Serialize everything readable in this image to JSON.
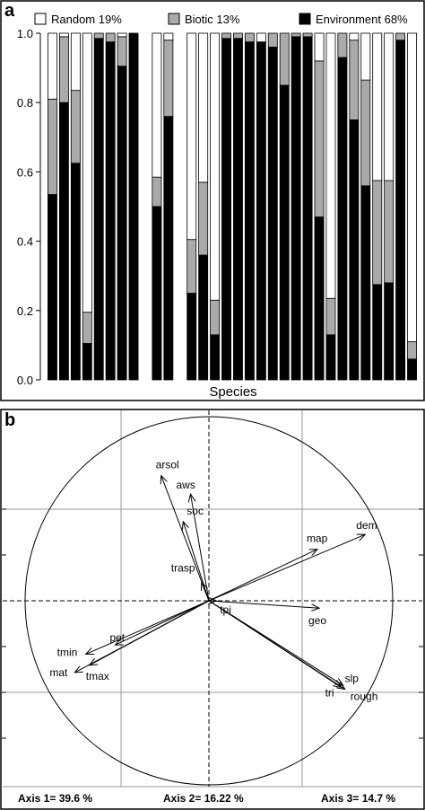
{
  "panel_a": {
    "panel_label": "a",
    "chart_data": {
      "type": "bar",
      "stacked": true,
      "xlabel": "Species",
      "ylabel": "",
      "ylim": [
        0,
        1
      ],
      "yticks": [
        "0.0",
        "0.2",
        "0.4",
        "0.6",
        "0.8",
        "1.0"
      ],
      "legend_position": "top",
      "legend": [
        {
          "label": "Random 19%",
          "color": "#ffffff"
        },
        {
          "label": "Biotic 13%",
          "color": "#aaaaaa"
        },
        {
          "label": "Environment 68%",
          "color": "#000000"
        }
      ],
      "series": [
        {
          "name": "Environment",
          "color": "#000000",
          "values": [
            0.535,
            0.8,
            0.625,
            0.105,
            0.985,
            0.975,
            0.905,
            1.0,
            0.0,
            0.5,
            0.76,
            0.0,
            0.25,
            0.36,
            0.13,
            0.985,
            0.985,
            0.975,
            0.975,
            0.96,
            0.85,
            0.99,
            0.99,
            0.47,
            0.13,
            0.93,
            0.75,
            0.56,
            0.275,
            0.28,
            0.98,
            0.06
          ]
        },
        {
          "name": "Biotic",
          "color": "#aaaaaa",
          "values": [
            0.275,
            0.19,
            0.21,
            0.09,
            0.015,
            0.025,
            0.085,
            0.0,
            0.0,
            0.085,
            0.22,
            0.0,
            0.155,
            0.21,
            0.1,
            0.015,
            0.015,
            0.025,
            0.0,
            0.04,
            0.15,
            0.01,
            0.01,
            0.45,
            0.105,
            0.07,
            0.23,
            0.305,
            0.3,
            0.295,
            0.02,
            0.05
          ]
        },
        {
          "name": "Random",
          "color": "#ffffff",
          "values": [
            0.19,
            0.01,
            0.165,
            0.805,
            0.0,
            0.0,
            0.01,
            0.0,
            0.0,
            0.415,
            0.02,
            0.0,
            0.595,
            0.43,
            0.77,
            0.0,
            0.0,
            0.0,
            0.025,
            0.0,
            0.0,
            0.0,
            0.0,
            0.08,
            0.765,
            0.0,
            0.02,
            0.135,
            0.425,
            0.425,
            0.0,
            0.89
          ]
        }
      ]
    }
  },
  "panel_b": {
    "panel_label": "b",
    "axis_labels": [
      "Axis 1= 39.6 %",
      "Axis 2= 16.22 %",
      "Axis 3= 14.7 %"
    ],
    "chart_data": {
      "type": "scatter",
      "subtype": "correlation-circle",
      "xlim": [
        -1,
        1
      ],
      "ylim": [
        -1,
        1
      ],
      "unit_circle": true,
      "grid": true,
      "vectors": [
        {
          "label": "arsol",
          "x": -0.26,
          "y": 0.68
        },
        {
          "label": "aws",
          "x": -0.1,
          "y": 0.58
        },
        {
          "label": "soc",
          "x": -0.14,
          "y": 0.43
        },
        {
          "label": "trasp",
          "x": -0.04,
          "y": 0.1
        },
        {
          "label": "tpi",
          "x": 0.04,
          "y": 0.0
        },
        {
          "label": "geo",
          "x": 0.6,
          "y": -0.04
        },
        {
          "label": "map",
          "x": 0.59,
          "y": 0.28
        },
        {
          "label": "dem",
          "x": 0.85,
          "y": 0.36
        },
        {
          "label": "slp",
          "x": 0.73,
          "y": -0.46
        },
        {
          "label": "tri",
          "x": 0.72,
          "y": -0.47
        },
        {
          "label": "rough",
          "x": 0.74,
          "y": -0.48
        },
        {
          "label": "pet",
          "x": -0.51,
          "y": -0.24
        },
        {
          "label": "tmin",
          "x": -0.67,
          "y": -0.29
        },
        {
          "label": "mat",
          "x": -0.73,
          "y": -0.39
        },
        {
          "label": "tmax",
          "x": -0.65,
          "y": -0.35
        }
      ]
    }
  }
}
